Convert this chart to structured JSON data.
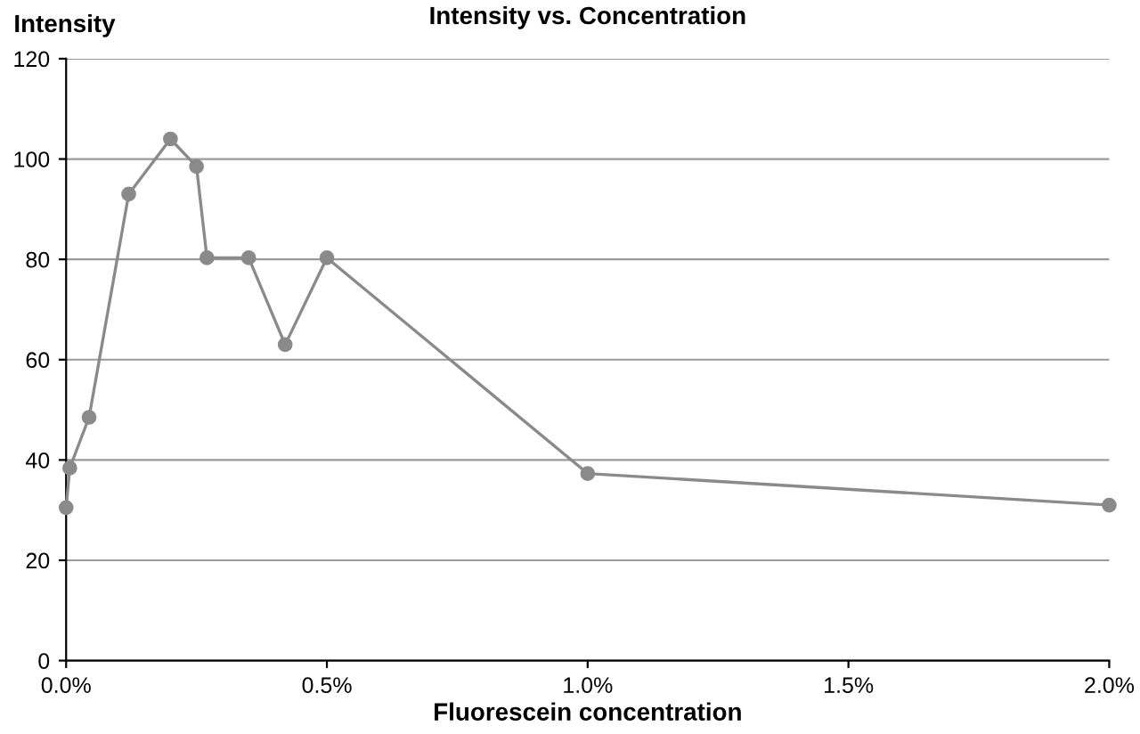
{
  "chart_data": {
    "type": "line",
    "title": "Intensity vs. Concentration",
    "xlabel": "Fluorescein concentration",
    "ylabel": "Intensity",
    "x": [
      0,
      0.007,
      0.044,
      0.12,
      0.2,
      0.25,
      0.27,
      0.35,
      0.42,
      0.5,
      1.0,
      2.0
    ],
    "series": [
      {
        "color": "#8a8a8a",
        "values": [
          30.5,
          38.4,
          48.5,
          93,
          104,
          98.5,
          80.3,
          80.3,
          63,
          80.3,
          37.3,
          31
        ]
      }
    ],
    "xlim": [
      0,
      2.0
    ],
    "xticks": [
      {
        "value": 0,
        "label": "0.0%"
      },
      {
        "value": 0.5,
        "label": "0.5%"
      },
      {
        "value": 1.0,
        "label": "1.0%"
      },
      {
        "value": 1.5,
        "label": "1.5%"
      },
      {
        "value": 2.0,
        "label": "2.0%"
      }
    ],
    "ylim": [
      0,
      120
    ],
    "yticks": [
      0,
      20,
      40,
      60,
      80,
      100,
      120
    ],
    "grid": "y",
    "marker": "circle",
    "line_style": "solid"
  }
}
